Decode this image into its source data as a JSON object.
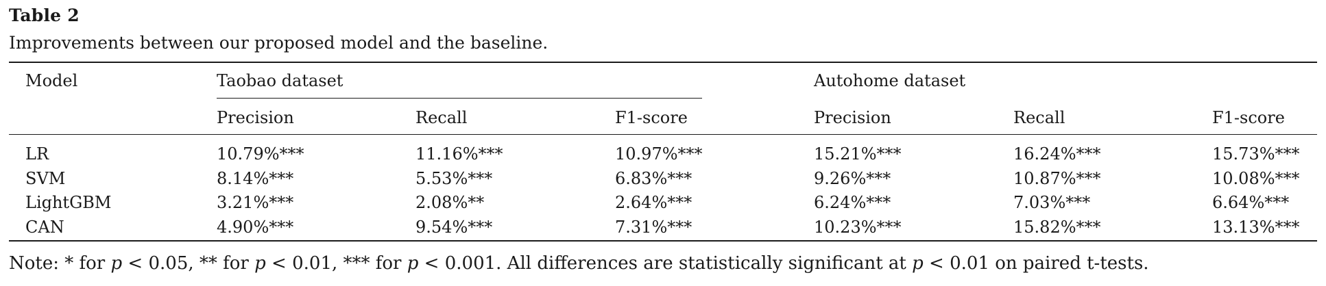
{
  "table": {
    "label": "Table 2",
    "caption": "Improvements between our proposed model and the baseline.",
    "header": {
      "model": "Model",
      "group1": "Taobao dataset",
      "group2": "Autohome dataset",
      "sub": [
        "Precision",
        "Recall",
        "F1-score",
        "Precision",
        "Recall",
        "F1-score"
      ]
    },
    "rows": [
      {
        "model": "LR",
        "values": [
          "10.79%***",
          "11.16%***",
          "10.97%***",
          "15.21%***",
          "16.24%***",
          "15.73%***"
        ]
      },
      {
        "model": "SVM",
        "values": [
          "8.14%***",
          "5.53%***",
          "6.83%***",
          "9.26%***",
          "10.87%***",
          "10.08%***"
        ]
      },
      {
        "model": "LightGBM",
        "values": [
          "3.21%***",
          "2.08%**",
          "2.64%***",
          "6.24%***",
          "7.03%***",
          "6.64%***"
        ]
      },
      {
        "model": "CAN",
        "values": [
          "4.90%***",
          "9.54%***",
          "7.31%***",
          "10.23%***",
          "15.82%***",
          "13.13%***"
        ]
      }
    ],
    "note": {
      "prefix": "Note: * for ",
      "p": "p",
      "t1": " < 0.05, ** for ",
      "t2": " < 0.01, *** for ",
      "t3": " < 0.001. All differences are statistically significant at ",
      "t4": " < 0.01 on paired t-tests."
    }
  }
}
